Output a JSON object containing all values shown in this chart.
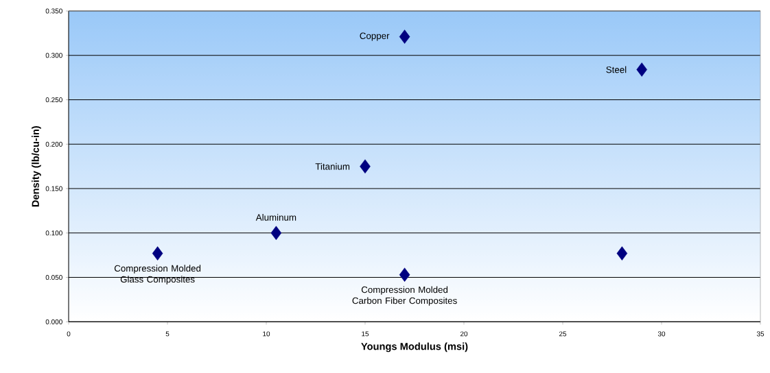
{
  "chart_data": {
    "type": "scatter",
    "xlabel": "Youngs Modulus (msi)",
    "ylabel": "Density (lb/cu-in)",
    "x": [
      4.5,
      10.5,
      15,
      17,
      17,
      29,
      28
    ],
    "values": [
      0.077,
      0.1,
      0.175,
      0.053,
      0.321,
      0.284,
      0.077
    ],
    "color": "#000080",
    "marker": "diamond",
    "xlim": [
      0,
      35
    ],
    "ylim": [
      0,
      0.35
    ],
    "xticks": [
      0,
      5,
      10,
      15,
      20,
      25,
      30,
      35
    ],
    "yticks": [
      {
        "value": 0,
        "label": "0.000"
      },
      {
        "value": 0.05,
        "label": "0.050"
      },
      {
        "value": 0.1,
        "label": "0.100"
      },
      {
        "value": 0.15,
        "label": "0.150"
      },
      {
        "value": 0.2,
        "label": "0.200"
      },
      {
        "value": 0.25,
        "label": "0.250"
      },
      {
        "value": 0.3,
        "label": "0.300"
      },
      {
        "value": 0.35,
        "label": "0.350"
      }
    ],
    "grid": "y",
    "annotations": [
      {
        "text": "Compression Molded Glass Composites",
        "x": 4.5,
        "y": 0.077
      },
      {
        "text": "Aluminum",
        "x": 10.5,
        "y": 0.1
      },
      {
        "text": "Titanium",
        "x": 15,
        "y": 0.175
      },
      {
        "text": "Compression Molded Carbon Fiber Composites",
        "x": 17,
        "y": 0.053
      },
      {
        "text": "Copper",
        "x": 17,
        "y": 0.321
      },
      {
        "text": "Steel",
        "x": 29,
        "y": 0.284
      }
    ]
  }
}
